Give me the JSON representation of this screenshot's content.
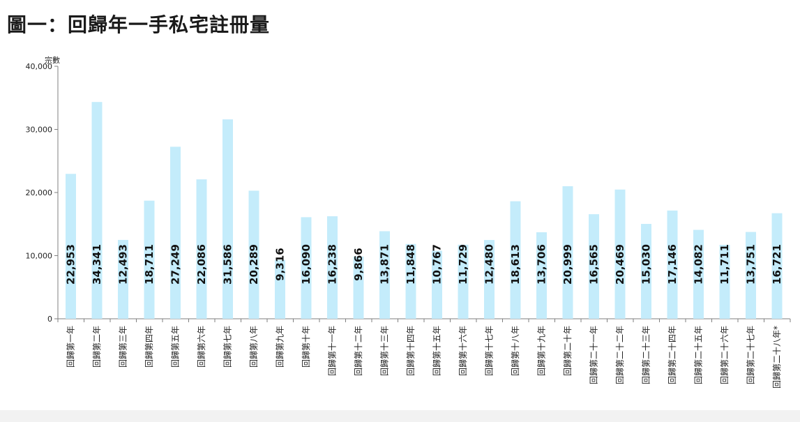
{
  "title": "圖一：回歸年一手私宅註冊量",
  "chart_data": {
    "type": "bar",
    "ylabel": "宗數",
    "ylim": [
      0,
      40000
    ],
    "yticks": [
      0,
      10000,
      20000,
      30000,
      40000
    ],
    "ytick_labels": [
      "0",
      "10,000",
      "20,000",
      "30,000",
      "40,000"
    ],
    "bar_color": "#c4ecfb",
    "categories": [
      "回歸第一年",
      "回歸第二年",
      "回歸第三年",
      "回歸第四年",
      "回歸第五年",
      "回歸第六年",
      "回歸第七年",
      "回歸第八年",
      "回歸第九年",
      "回歸第十年",
      "回歸第十一年",
      "回歸第十二年",
      "回歸第十三年",
      "回歸第十四年",
      "回歸第十五年",
      "回歸第十六年",
      "回歸第十七年",
      "回歸第十八年",
      "回歸第十九年",
      "回歸第二十年",
      "回歸第二十一年",
      "回歸第二十二年",
      "回歸第二十三年",
      "回歸第二十四年",
      "回歸第二十五年",
      "回歸第二十六年",
      "回歸第二十七年",
      "回歸第二十八年*"
    ],
    "values": [
      22953,
      34341,
      12493,
      18711,
      27249,
      22086,
      31586,
      20289,
      9316,
      16090,
      16238,
      9866,
      13871,
      11848,
      10767,
      11729,
      12480,
      18613,
      13706,
      20999,
      16565,
      20469,
      15030,
      17146,
      14082,
      11711,
      13751,
      16721
    ],
    "value_labels": [
      "22,953",
      "34,341",
      "12,493",
      "18,711",
      "27,249",
      "22,086",
      "31,586",
      "20,289",
      "9,316",
      "16,090",
      "16,238",
      "9,866",
      "13,871",
      "11,848",
      "10,767",
      "11,729",
      "12,480",
      "18,613",
      "13,706",
      "20,999",
      "16,565",
      "20,469",
      "15,030",
      "17,146",
      "14,082",
      "11,711",
      "13,751",
      "16,721"
    ]
  }
}
